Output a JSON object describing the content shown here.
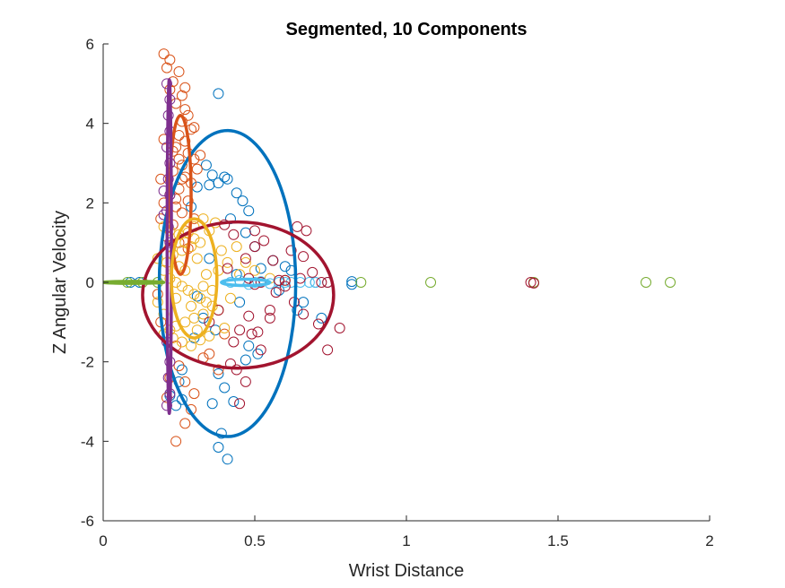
{
  "chart_data": {
    "type": "scatter",
    "title": "Segmented, 10 Components",
    "xlabel": "Wrist Distance",
    "ylabel": "Z Angular Velocity",
    "xlim": [
      0,
      2
    ],
    "ylim": [
      -6,
      6
    ],
    "xticks": [
      0,
      0.5,
      1,
      1.5,
      2
    ],
    "xtick_labels": [
      "0",
      "0.5",
      "1",
      "1.5",
      "2"
    ],
    "yticks": [
      -6,
      -4,
      -2,
      0,
      2,
      4,
      6
    ],
    "ytick_labels": [
      "-6",
      "-4",
      "-2",
      "0",
      "2",
      "4",
      "6"
    ],
    "grid": false,
    "legend": "none",
    "colors": {
      "blue": "#0072BD",
      "orange": "#D95319",
      "yellow": "#EDB120",
      "purple": "#7E2F8E",
      "green": "#77AC30",
      "lightblue": "#4DBEEE",
      "darkred": "#A2142F"
    },
    "ellipses": [
      {
        "color": "blue",
        "cx": 0.41,
        "cy": -0.03,
        "rx": 0.225,
        "ry": 3.85,
        "rotation_deg": 0
      },
      {
        "color": "darkred",
        "cx": 0.445,
        "cy": -0.32,
        "rx": 0.315,
        "ry": 1.84,
        "rotation_deg": 0
      },
      {
        "color": "orange",
        "cx": 0.255,
        "cy": 2.2,
        "rx": 0.035,
        "ry": 2.0,
        "rotation_deg": 0
      },
      {
        "color": "purple",
        "cx": 0.218,
        "cy": 0.9,
        "rx": 0.007,
        "ry": 4.2,
        "rotation_deg": 0
      },
      {
        "color": "yellow",
        "cx": 0.3,
        "cy": 0.1,
        "rx": 0.075,
        "ry": 1.5,
        "rotation_deg": 0
      },
      {
        "color": "green",
        "cx": 0.1,
        "cy": 0.0,
        "rx": 0.1,
        "ry": 0.025,
        "rotation_deg": 0
      },
      {
        "color": "lightblue",
        "cx": 0.47,
        "cy": 0.0,
        "rx": 0.08,
        "ry": 0.08,
        "rotation_deg": 0
      }
    ],
    "series": [
      {
        "color": "blue",
        "points": [
          [
            0.38,
            4.75
          ],
          [
            0.34,
            2.95
          ],
          [
            0.36,
            2.7
          ],
          [
            0.38,
            2.5
          ],
          [
            0.4,
            2.65
          ],
          [
            0.41,
            2.6
          ],
          [
            0.44,
            2.25
          ],
          [
            0.46,
            2.05
          ],
          [
            0.48,
            1.8
          ],
          [
            0.35,
            2.45
          ],
          [
            0.42,
            1.6
          ],
          [
            0.47,
            1.25
          ],
          [
            0.5,
            0.9
          ],
          [
            0.56,
            0.55
          ],
          [
            0.62,
            0.3
          ],
          [
            0.66,
            -0.5
          ],
          [
            0.64,
            -0.7
          ],
          [
            0.7,
            0.0
          ],
          [
            0.72,
            -0.9
          ],
          [
            0.82,
            -0.05
          ],
          [
            0.82,
            0.02
          ],
          [
            0.48,
            -1.6
          ],
          [
            0.51,
            -1.8
          ],
          [
            0.47,
            -1.95
          ],
          [
            0.38,
            -2.3
          ],
          [
            0.36,
            -3.05
          ],
          [
            0.39,
            -3.8
          ],
          [
            0.38,
            -4.15
          ],
          [
            0.41,
            -4.45
          ],
          [
            0.43,
            -3.0
          ],
          [
            0.4,
            -2.65
          ],
          [
            0.09,
            0.0
          ],
          [
            0.12,
            0.0
          ],
          [
            0.35,
            0.6
          ],
          [
            0.33,
            -0.9
          ],
          [
            0.3,
            -1.4
          ],
          [
            0.26,
            -2.2
          ],
          [
            0.25,
            -2.5
          ],
          [
            0.22,
            -2.85
          ],
          [
            0.24,
            -3.1
          ],
          [
            0.26,
            -2.95
          ],
          [
            0.31,
            -0.35
          ],
          [
            0.44,
            0.2
          ],
          [
            0.52,
            0.35
          ],
          [
            0.58,
            -0.2
          ],
          [
            0.6,
            0.4
          ],
          [
            0.37,
            -1.2
          ],
          [
            0.45,
            -0.5
          ],
          [
            0.29,
            1.9
          ],
          [
            0.31,
            2.4
          ]
        ]
      },
      {
        "color": "orange",
        "points": [
          [
            0.2,
            5.75
          ],
          [
            0.22,
            5.6
          ],
          [
            0.21,
            5.4
          ],
          [
            0.25,
            5.3
          ],
          [
            0.23,
            5.05
          ],
          [
            0.22,
            4.85
          ],
          [
            0.26,
            4.7
          ],
          [
            0.24,
            4.5
          ],
          [
            0.27,
            4.35
          ],
          [
            0.28,
            4.2
          ],
          [
            0.26,
            4.05
          ],
          [
            0.29,
            3.85
          ],
          [
            0.25,
            3.7
          ],
          [
            0.27,
            3.55
          ],
          [
            0.24,
            3.4
          ],
          [
            0.28,
            3.25
          ],
          [
            0.3,
            3.1
          ],
          [
            0.26,
            2.95
          ],
          [
            0.23,
            2.8
          ],
          [
            0.27,
            2.65
          ],
          [
            0.29,
            2.5
          ],
          [
            0.25,
            2.35
          ],
          [
            0.22,
            2.2
          ],
          [
            0.28,
            2.05
          ],
          [
            0.24,
            1.9
          ],
          [
            0.26,
            1.75
          ],
          [
            0.3,
            1.6
          ],
          [
            0.23,
            1.45
          ],
          [
            0.27,
            1.3
          ],
          [
            0.21,
            1.15
          ],
          [
            0.25,
            1.0
          ],
          [
            0.28,
            0.85
          ],
          [
            0.32,
            3.2
          ],
          [
            0.31,
            2.85
          ],
          [
            0.2,
            3.6
          ],
          [
            0.19,
            2.6
          ],
          [
            0.2,
            2.0
          ],
          [
            0.19,
            1.6
          ],
          [
            0.3,
            3.9
          ],
          [
            0.27,
            4.9
          ],
          [
            0.24,
            2.1
          ],
          [
            0.26,
            2.6
          ],
          [
            0.25,
            3.1
          ],
          [
            0.23,
            3.3
          ],
          [
            0.24,
            -1.6
          ],
          [
            0.25,
            -2.1
          ],
          [
            0.22,
            -2.4
          ],
          [
            0.27,
            -2.5
          ],
          [
            0.3,
            -2.8
          ],
          [
            0.29,
            -3.2
          ],
          [
            0.27,
            -3.55
          ],
          [
            0.24,
            -4.0
          ],
          [
            0.21,
            -2.9
          ],
          [
            0.33,
            -1.9
          ],
          [
            0.38,
            -2.2
          ],
          [
            0.35,
            -1.8
          ],
          [
            0.4,
            -1.3
          ],
          [
            0.19,
            -1.0
          ],
          [
            0.18,
            -0.3
          ]
        ]
      },
      {
        "color": "yellow",
        "points": [
          [
            0.2,
            1.4
          ],
          [
            0.22,
            1.3
          ],
          [
            0.25,
            1.2
          ],
          [
            0.28,
            1.25
          ],
          [
            0.3,
            1.1
          ],
          [
            0.32,
            1.0
          ],
          [
            0.35,
            1.3
          ],
          [
            0.37,
            1.5
          ],
          [
            0.33,
            1.6
          ],
          [
            0.29,
            0.9
          ],
          [
            0.26,
            0.8
          ],
          [
            0.23,
            0.7
          ],
          [
            0.21,
            0.5
          ],
          [
            0.2,
            0.3
          ],
          [
            0.22,
            0.1
          ],
          [
            0.24,
            0.0
          ],
          [
            0.26,
            -0.1
          ],
          [
            0.28,
            -0.2
          ],
          [
            0.3,
            -0.3
          ],
          [
            0.32,
            -0.4
          ],
          [
            0.34,
            -0.5
          ],
          [
            0.36,
            -0.6
          ],
          [
            0.38,
            -0.7
          ],
          [
            0.33,
            -0.8
          ],
          [
            0.3,
            -0.9
          ],
          [
            0.27,
            -1.0
          ],
          [
            0.24,
            -1.1
          ],
          [
            0.22,
            -1.2
          ],
          [
            0.2,
            -1.3
          ],
          [
            0.23,
            -1.4
          ],
          [
            0.26,
            -1.5
          ],
          [
            0.29,
            -1.6
          ],
          [
            0.32,
            -1.45
          ],
          [
            0.35,
            -1.35
          ],
          [
            0.4,
            -1.15
          ],
          [
            0.42,
            -0.4
          ],
          [
            0.45,
            0.2
          ],
          [
            0.41,
            0.5
          ],
          [
            0.39,
            0.8
          ],
          [
            0.44,
            0.9
          ],
          [
            0.47,
            0.5
          ],
          [
            0.5,
            0.3
          ],
          [
            0.55,
            0.1
          ],
          [
            0.6,
            0.05
          ],
          [
            0.18,
            0.6
          ],
          [
            0.18,
            -0.5
          ],
          [
            0.3,
            1.4
          ],
          [
            0.31,
            0.6
          ],
          [
            0.27,
            0.3
          ],
          [
            0.29,
            -0.6
          ],
          [
            0.25,
            0.4
          ],
          [
            0.34,
            0.2
          ],
          [
            0.36,
            -0.2
          ],
          [
            0.2,
            -0.8
          ],
          [
            0.22,
            0.9
          ],
          [
            0.31,
            -1.2
          ],
          [
            0.27,
            1.0
          ],
          [
            0.38,
            0.3
          ],
          [
            0.33,
            -0.1
          ],
          [
            0.24,
            -0.4
          ]
        ]
      },
      {
        "color": "purple",
        "points": [
          [
            0.21,
            5.0
          ],
          [
            0.22,
            4.6
          ],
          [
            0.215,
            4.2
          ],
          [
            0.22,
            3.8
          ],
          [
            0.21,
            3.4
          ],
          [
            0.22,
            3.0
          ],
          [
            0.215,
            2.6
          ],
          [
            0.22,
            2.2
          ],
          [
            0.21,
            1.8
          ],
          [
            0.215,
            1.4
          ],
          [
            0.22,
            1.0
          ],
          [
            0.2,
            2.3
          ],
          [
            0.2,
            1.7
          ],
          [
            0.21,
            -1.5
          ],
          [
            0.22,
            -2.0
          ],
          [
            0.215,
            -2.4
          ],
          [
            0.22,
            -2.8
          ],
          [
            0.21,
            -3.1
          ]
        ]
      },
      {
        "color": "green",
        "points": [
          [
            0.08,
            0.0
          ],
          [
            0.13,
            0.0
          ],
          [
            0.18,
            0.0
          ],
          [
            0.85,
            0.0
          ],
          [
            1.08,
            0.0
          ],
          [
            1.42,
            0.0
          ],
          [
            1.79,
            0.0
          ],
          [
            1.87,
            0.0
          ]
        ]
      },
      {
        "color": "lightblue",
        "points": [
          [
            0.42,
            0.0
          ],
          [
            0.45,
            0.05
          ],
          [
            0.48,
            -0.05
          ],
          [
            0.5,
            0.0
          ],
          [
            0.52,
            0.02
          ],
          [
            0.55,
            -0.03
          ],
          [
            0.58,
            0.0
          ],
          [
            0.6,
            0.0
          ],
          [
            0.62,
            0.0
          ],
          [
            0.65,
            0.0
          ],
          [
            0.68,
            0.0
          ],
          [
            0.7,
            0.0
          ],
          [
            0.74,
            0.0
          ]
        ]
      },
      {
        "color": "darkred",
        "points": [
          [
            0.64,
            1.4
          ],
          [
            0.67,
            1.3
          ],
          [
            0.62,
            0.8
          ],
          [
            0.66,
            0.65
          ],
          [
            0.69,
            0.25
          ],
          [
            0.65,
            0.1
          ],
          [
            0.72,
            0.0
          ],
          [
            0.74,
            0.0
          ],
          [
            0.6,
            -0.1
          ],
          [
            0.57,
            -0.25
          ],
          [
            0.63,
            -0.5
          ],
          [
            0.66,
            -0.8
          ],
          [
            0.71,
            -1.05
          ],
          [
            0.74,
            -1.7
          ],
          [
            0.78,
            -1.15
          ],
          [
            0.55,
            -0.7
          ],
          [
            0.48,
            -0.85
          ],
          [
            0.45,
            -1.2
          ],
          [
            0.43,
            -1.5
          ],
          [
            0.42,
            -2.05
          ],
          [
            0.44,
            -2.2
          ],
          [
            0.45,
            -3.05
          ],
          [
            0.47,
            -2.5
          ],
          [
            0.52,
            -1.7
          ],
          [
            0.49,
            -1.3
          ],
          [
            0.51,
            -1.25
          ],
          [
            0.55,
            -0.9
          ],
          [
            0.47,
            0.6
          ],
          [
            0.5,
            0.9
          ],
          [
            0.53,
            1.05
          ],
          [
            0.5,
            1.3
          ],
          [
            0.4,
            1.45
          ],
          [
            0.43,
            1.2
          ],
          [
            0.56,
            0.55
          ],
          [
            0.58,
            0.05
          ],
          [
            0.6,
            0.05
          ],
          [
            0.48,
            0.1
          ],
          [
            0.5,
            -0.05
          ],
          [
            0.52,
            0.0
          ],
          [
            1.41,
            0.0
          ],
          [
            1.42,
            -0.02
          ],
          [
            0.38,
            -0.7
          ],
          [
            0.35,
            -1.0
          ],
          [
            0.41,
            0.35
          ]
        ]
      }
    ]
  }
}
